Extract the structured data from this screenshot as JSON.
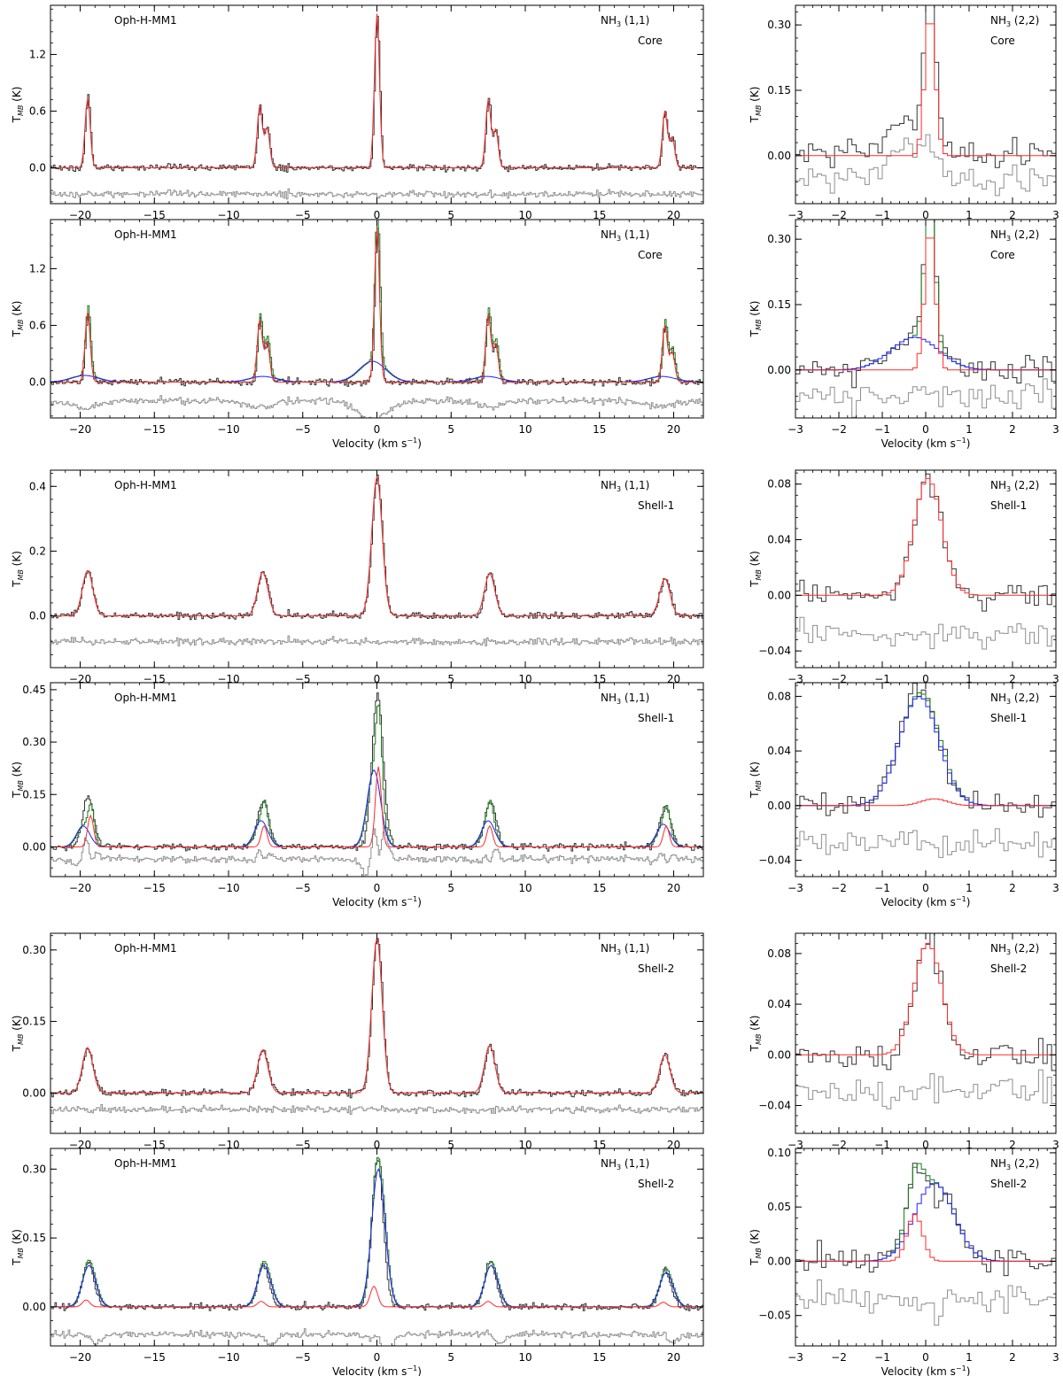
{
  "figure": {
    "source_label": "Oph-H-MM1",
    "colors": {
      "observed": "#333333",
      "narrow_component": "#ff2a2a",
      "broad_component": "#1f1fff",
      "total_fit": "#1a7a1a",
      "residual": "#8f8f8f"
    }
  },
  "chart_data": [
    {
      "type": "line",
      "name": "panel-1-left",
      "transition": "(1,1)",
      "region": "Core",
      "model": "single",
      "xlim": [
        -22,
        22
      ],
      "ylim": [
        -0.38,
        1.72
      ],
      "xticks": [
        -20,
        -15,
        -10,
        -5,
        0,
        5,
        10,
        15,
        20
      ],
      "yticks": [
        0.0,
        0.6,
        1.2
      ],
      "ytick_labels": [
        "0.0",
        "0.6",
        "1.2"
      ],
      "xlabel": "",
      "ylabel": "T_MB (K)",
      "peaks": [
        [
          -19.5,
          0.74
        ],
        [
          -7.9,
          0.66
        ],
        [
          -7.4,
          0.42
        ],
        [
          0.0,
          1.63
        ],
        [
          7.5,
          0.72
        ],
        [
          8.0,
          0.4
        ],
        [
          19.4,
          0.6
        ],
        [
          19.9,
          0.32
        ]
      ],
      "residual_offset": -0.28
    },
    {
      "type": "line",
      "name": "panel-1-right",
      "transition": "(2,2)",
      "region": "Core",
      "model": "single",
      "xlim": [
        -3,
        3
      ],
      "ylim": [
        -0.11,
        0.345
      ],
      "xticks": [
        -3,
        -2,
        -1,
        0,
        1,
        2,
        3
      ],
      "yticks": [
        0.0,
        0.15,
        0.3
      ],
      "ytick_labels": [
        "0.00",
        "0.15",
        "0.30"
      ],
      "xlabel": "",
      "ylabel": "T_MB (K)",
      "peak": 0.33,
      "center": 0.05,
      "broad_peak": 0.09,
      "broad_center": -0.35,
      "residual_offset": -0.06
    },
    {
      "type": "line",
      "name": "panel-2-left",
      "transition": "(1,1)",
      "region": "Core",
      "model": "two-component",
      "xlim": [
        -22,
        22
      ],
      "ylim": [
        -0.38,
        1.72
      ],
      "xticks": [
        -20,
        -15,
        -10,
        -5,
        0,
        5,
        10,
        15,
        20
      ],
      "yticks": [
        0.0,
        0.6,
        1.2
      ],
      "ytick_labels": [
        "0.0",
        "0.6",
        "1.2"
      ],
      "xlabel": "Velocity (km s⁻¹)",
      "ylabel": "T_MB (K)",
      "peaks": [
        [
          -19.5,
          0.74
        ],
        [
          -7.9,
          0.66
        ],
        [
          -7.4,
          0.42
        ],
        [
          0.0,
          1.63
        ],
        [
          7.5,
          0.72
        ],
        [
          8.0,
          0.4
        ],
        [
          19.4,
          0.6
        ],
        [
          19.9,
          0.32
        ]
      ],
      "broad_peaks": [
        [
          -19.7,
          0.07
        ],
        [
          -7.7,
          0.06
        ],
        [
          -0.3,
          0.22
        ],
        [
          7.4,
          0.06
        ],
        [
          19.2,
          0.06
        ]
      ],
      "residual_offset": -0.2
    },
    {
      "type": "line",
      "name": "panel-2-right",
      "transition": "(2,2)",
      "region": "Core",
      "model": "two-component",
      "xlim": [
        -3,
        3
      ],
      "ylim": [
        -0.11,
        0.345
      ],
      "xticks": [
        -3,
        -2,
        -1,
        0,
        1,
        2,
        3
      ],
      "yticks": [
        0.0,
        0.15,
        0.3
      ],
      "ytick_labels": [
        "0.00",
        "0.15",
        "0.30"
      ],
      "xlabel": "Velocity (km s⁻¹)",
      "ylabel": "T_MB (K)",
      "peak": 0.33,
      "center": 0.05,
      "broad_peak": 0.075,
      "broad_center": -0.3,
      "residual_offset": -0.06
    },
    {
      "type": "line",
      "name": "panel-3-left",
      "transition": "(1,1)",
      "region": "Shell-1",
      "model": "single",
      "xlim": [
        -22,
        22
      ],
      "ylim": [
        -0.16,
        0.45
      ],
      "xticks": [
        -20,
        -15,
        -10,
        -5,
        0,
        5,
        10,
        15,
        20
      ],
      "yticks": [
        0.0,
        0.2,
        0.4
      ],
      "ytick_labels": [
        "0.0",
        "0.2",
        "0.4"
      ],
      "xlabel": "",
      "ylabel": "T_MB (K)",
      "peaks": [
        [
          -19.5,
          0.14
        ],
        [
          -7.7,
          0.135
        ],
        [
          0.0,
          0.43
        ],
        [
          7.6,
          0.13
        ],
        [
          19.4,
          0.115
        ]
      ],
      "residual_offset": -0.08
    },
    {
      "type": "line",
      "name": "panel-3-right",
      "transition": "(2,2)",
      "region": "Shell-1",
      "model": "single",
      "xlim": [
        -3,
        3
      ],
      "ylim": [
        -0.052,
        0.09
      ],
      "xticks": [
        -3,
        -2,
        -1,
        0,
        1,
        2,
        3
      ],
      "yticks": [
        -0.04,
        0.0,
        0.04,
        0.08
      ],
      "ytick_labels": [
        "−0.04",
        "0.00",
        "0.04",
        "0.08"
      ],
      "xlabel": "",
      "ylabel": "T_MB (K)",
      "peak": 0.084,
      "center": 0.0,
      "residual_offset": -0.028
    },
    {
      "type": "line",
      "name": "panel-4-left",
      "transition": "(1,1)",
      "region": "Shell-1",
      "model": "two-component",
      "xlim": [
        -22,
        22
      ],
      "ylim": [
        -0.085,
        0.47
      ],
      "xticks": [
        -20,
        -15,
        -10,
        -5,
        0,
        5,
        10,
        15,
        20
      ],
      "yticks": [
        0.0,
        0.15,
        0.3,
        0.45
      ],
      "ytick_labels": [
        "0.00",
        "0.15",
        "0.30",
        "0.45"
      ],
      "xlabel": "Velocity (km s⁻¹)",
      "ylabel": "T_MB (K)",
      "peaks": [
        [
          -19.5,
          0.14
        ],
        [
          -7.7,
          0.135
        ],
        [
          0.0,
          0.43
        ],
        [
          7.6,
          0.13
        ],
        [
          19.4,
          0.115
        ]
      ],
      "narrow_peaks": [
        [
          -19.3,
          0.09
        ],
        [
          -7.6,
          0.06
        ],
        [
          0.1,
          0.23
        ],
        [
          7.6,
          0.06
        ],
        [
          19.5,
          0.06
        ]
      ],
      "broad_peaks": [
        [
          -19.8,
          0.06
        ],
        [
          -7.8,
          0.075
        ],
        [
          -0.2,
          0.22
        ],
        [
          7.5,
          0.075
        ],
        [
          19.3,
          0.065
        ]
      ],
      "residual_offset": -0.035
    },
    {
      "type": "line",
      "name": "panel-4-right",
      "transition": "(2,2)",
      "region": "Shell-1",
      "model": "two-component",
      "xlim": [
        -3,
        3
      ],
      "ylim": [
        -0.052,
        0.09
      ],
      "xticks": [
        -3,
        -2,
        -1,
        0,
        1,
        2,
        3
      ],
      "yticks": [
        -0.04,
        0.0,
        0.04,
        0.08
      ],
      "ytick_labels": [
        "−0.04",
        "0.00",
        "0.04",
        "0.08"
      ],
      "xlabel": "Velocity (km s⁻¹)",
      "ylabel": "T_MB (K)",
      "peak": 0.005,
      "center": 0.15,
      "broad_peak": 0.08,
      "broad_center": -0.2,
      "residual_offset": -0.028
    },
    {
      "type": "line",
      "name": "panel-5-left",
      "transition": "(1,1)",
      "region": "Shell-2",
      "model": "single",
      "xlim": [
        -22,
        22
      ],
      "ylim": [
        -0.085,
        0.335
      ],
      "xticks": [
        -20,
        -15,
        -10,
        -5,
        0,
        5,
        10,
        15,
        20
      ],
      "yticks": [
        0.0,
        0.15,
        0.3
      ],
      "ytick_labels": [
        "0.00",
        "0.15",
        "0.30"
      ],
      "xlabel": "",
      "ylabel": "T_MB (K)",
      "peaks": [
        [
          -19.5,
          0.095
        ],
        [
          -7.7,
          0.09
        ],
        [
          0.0,
          0.325
        ],
        [
          7.6,
          0.1
        ],
        [
          19.4,
          0.08
        ]
      ],
      "residual_offset": -0.035
    },
    {
      "type": "line",
      "name": "panel-5-right",
      "transition": "(2,2)",
      "region": "Shell-2",
      "model": "single",
      "xlim": [
        -3,
        3
      ],
      "ylim": [
        -0.062,
        0.096
      ],
      "xticks": [
        -3,
        -2,
        -1,
        0,
        1,
        2,
        3
      ],
      "yticks": [
        -0.04,
        0.0,
        0.04,
        0.08
      ],
      "ytick_labels": [
        "−0.04",
        "0.00",
        "0.04",
        "0.08"
      ],
      "xlabel": "",
      "ylabel": "T_MB (K)",
      "peak": 0.088,
      "center": 0.0,
      "residual_offset": -0.028
    },
    {
      "type": "line",
      "name": "panel-6-left",
      "transition": "(1,1)",
      "region": "Shell-2",
      "model": "two-component",
      "xlim": [
        -22,
        22
      ],
      "ylim": [
        -0.085,
        0.345
      ],
      "xticks": [
        -20,
        -15,
        -10,
        -5,
        0,
        5,
        10,
        15,
        20
      ],
      "yticks": [
        0.0,
        0.15,
        0.3
      ],
      "ytick_labels": [
        "0.00",
        "0.15",
        "0.30"
      ],
      "xlabel": "Velocity (km s⁻¹)",
      "ylabel": "T_MB (K)",
      "peaks": [
        [
          -19.5,
          0.095
        ],
        [
          -7.7,
          0.09
        ],
        [
          0.0,
          0.325
        ],
        [
          7.6,
          0.1
        ],
        [
          19.4,
          0.08
        ]
      ],
      "narrow_peaks": [
        [
          -19.6,
          0.015
        ],
        [
          -7.8,
          0.012
        ],
        [
          -0.2,
          0.045
        ],
        [
          7.5,
          0.012
        ],
        [
          19.3,
          0.01
        ]
      ],
      "broad_peaks": [
        [
          -19.4,
          0.09
        ],
        [
          -7.6,
          0.09
        ],
        [
          0.1,
          0.3
        ],
        [
          7.7,
          0.09
        ],
        [
          19.5,
          0.075
        ]
      ],
      "residual_offset": -0.06
    },
    {
      "type": "line",
      "name": "panel-6-right",
      "transition": "(2,2)",
      "region": "Shell-2",
      "model": "two-component",
      "xlim": [
        -3,
        3
      ],
      "ylim": [
        -0.078,
        0.104
      ],
      "xticks": [
        -3,
        -2,
        -1,
        0,
        1,
        2,
        3
      ],
      "yticks": [
        -0.05,
        0.0,
        0.05,
        0.1
      ],
      "ytick_labels": [
        "−0.05",
        "0.00",
        "0.05",
        "0.10"
      ],
      "xlabel": "Velocity (km s⁻¹)",
      "ylabel": "T_MB (K)",
      "peak": 0.043,
      "center": -0.3,
      "broad_peak": 0.072,
      "broad_center": 0.15,
      "residual_offset": -0.035
    }
  ]
}
